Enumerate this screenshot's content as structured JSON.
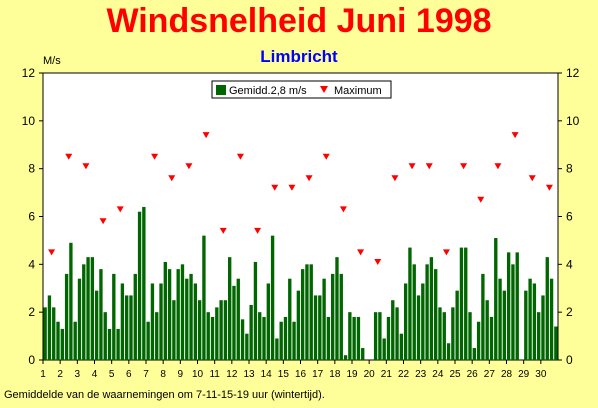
{
  "title": "Windsnelheid Juni 1998",
  "footnote": "Gemiddelde van de waarnemingen om 7-11-15-19 uur (wintertijd).",
  "colors": {
    "title": "#ff0000",
    "subtitle": "#0000ff",
    "background": "#ffff99",
    "bar": "#006600",
    "marker": "#ff0000",
    "plot_bg": "#ffffff"
  },
  "chart_data": {
    "type": "bar",
    "subtitle": "Limbricht",
    "ylabel": "M/s",
    "ylim": [
      0,
      12
    ],
    "yticks": [
      0,
      2,
      4,
      6,
      8,
      10,
      12
    ],
    "xlim": [
      1,
      31
    ],
    "xticks": [
      1,
      2,
      3,
      4,
      5,
      6,
      7,
      8,
      9,
      10,
      11,
      12,
      13,
      14,
      15,
      16,
      17,
      18,
      19,
      20,
      21,
      22,
      23,
      24,
      25,
      26,
      27,
      28,
      29,
      30
    ],
    "grid": false,
    "legend_position": "top-center",
    "series": [
      {
        "name": "Gemidd.2,8 m/s",
        "kind": "bar",
        "x": [
          1,
          1.25,
          1.5,
          1.75,
          2,
          2.25,
          2.5,
          2.75,
          3,
          3.25,
          3.5,
          3.75,
          4,
          4.25,
          4.5,
          4.75,
          5,
          5.25,
          5.5,
          5.75,
          6,
          6.25,
          6.5,
          6.75,
          7,
          7.25,
          7.5,
          7.75,
          8,
          8.25,
          8.5,
          8.75,
          9,
          9.25,
          9.5,
          9.75,
          10,
          10.25,
          10.5,
          10.75,
          11,
          11.25,
          11.5,
          11.75,
          12,
          12.25,
          12.5,
          12.75,
          13,
          13.25,
          13.5,
          13.75,
          14,
          14.25,
          14.5,
          14.75,
          15,
          15.25,
          15.5,
          15.75,
          16,
          16.25,
          16.5,
          16.75,
          17,
          17.25,
          17.5,
          17.75,
          18,
          18.25,
          18.5,
          18.75,
          19,
          19.25,
          19.5,
          19.75,
          20,
          20.25,
          20.5,
          20.75,
          21,
          21.25,
          21.5,
          21.75,
          22,
          22.25,
          22.5,
          22.75,
          23,
          23.25,
          23.5,
          23.75,
          24,
          24.25,
          24.5,
          24.75,
          25,
          25.25,
          25.5,
          25.75,
          26,
          26.25,
          26.5,
          26.75,
          27,
          27.25,
          27.5,
          27.75,
          28,
          28.25,
          28.5,
          28.75,
          29,
          29.25,
          29.5,
          29.75,
          30,
          30.25,
          30.5,
          30.75
        ],
        "values": [
          2.2,
          2.7,
          2.2,
          1.6,
          1.3,
          3.6,
          4.9,
          1.6,
          3.4,
          4.0,
          4.3,
          4.3,
          2.9,
          3.8,
          2.0,
          1.3,
          3.6,
          1.3,
          3.2,
          2.7,
          2.7,
          3.6,
          6.2,
          6.4,
          1.6,
          3.2,
          2.0,
          3.2,
          4.1,
          3.8,
          2.5,
          3.8,
          4.0,
          3.4,
          3.6,
          3.2,
          2.5,
          5.2,
          2.0,
          1.8,
          2.2,
          2.5,
          2.5,
          4.3,
          3.1,
          3.4,
          1.7,
          1.1,
          2.3,
          4.1,
          2.0,
          1.8,
          3.2,
          5.2,
          0.9,
          1.6,
          1.8,
          3.4,
          1.6,
          2.9,
          3.8,
          4.0,
          4.0,
          2.7,
          2.7,
          3.4,
          1.8,
          3.6,
          4.3,
          3.6,
          0.2,
          2.0,
          1.8,
          1.8,
          0.5,
          0,
          0,
          2.0,
          2.0,
          0.9,
          1.8,
          2.5,
          2.2,
          1.1,
          3.2,
          4.7,
          4.0,
          2.7,
          3.2,
          4.0,
          4.3,
          3.8,
          2.2,
          2.0,
          0.7,
          2.2,
          2.9,
          4.7,
          4.7,
          2.0,
          0.5,
          1.6,
          3.6,
          2.5,
          1.8,
          5.1,
          3.4,
          2.9,
          4.5,
          4.0,
          4.5,
          0,
          2.9,
          3.4,
          3.2,
          2.0,
          2.7,
          4.3,
          3.4,
          1.4
        ]
      },
      {
        "name": "Maximum",
        "kind": "marker",
        "x": [
          1.5,
          2.5,
          3.5,
          4.5,
          5.5,
          6.5,
          7.5,
          8.5,
          9.5,
          10.5,
          11.5,
          12.5,
          13.5,
          14.5,
          15.5,
          16.5,
          17.5,
          18.5,
          19.5,
          20.5,
          21.5,
          22.5,
          23.5,
          24.5,
          25.5,
          26.5,
          27.5,
          28.5,
          29.5,
          30.5
        ],
        "values": [
          4.5,
          8.5,
          8.1,
          5.8,
          6.3,
          null,
          8.5,
          7.6,
          8.1,
          9.4,
          5.4,
          8.5,
          5.4,
          7.2,
          7.2,
          7.6,
          8.5,
          6.3,
          4.5,
          4.1,
          7.6,
          8.1,
          8.1,
          4.5,
          8.1,
          6.7,
          8.1,
          9.4,
          7.6,
          7.2
        ]
      }
    ]
  }
}
